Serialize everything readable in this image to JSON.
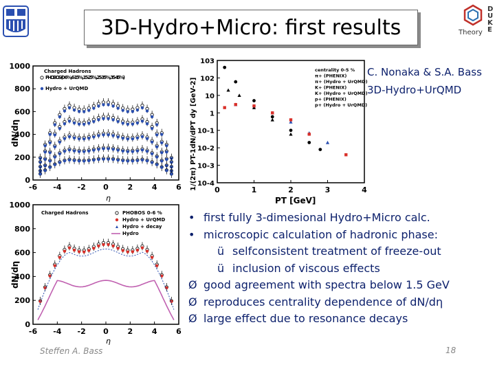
{
  "slide": {
    "title": "3D-Hydro+Micro: first results",
    "credit_line1": "C. Nonaka & S.A. Bass",
    "credit_line2": "3D-Hydro+UrQMD",
    "bullets": [
      {
        "marker": "•",
        "level": 1,
        "text": "first fully 3-dimesional Hydro+Micro calc."
      },
      {
        "marker": "•",
        "level": 1,
        "text": "microscopic calculation of hadronic phase:"
      },
      {
        "marker": "ü",
        "level": 2,
        "text": "selfconsistent treatment of freeze-out"
      },
      {
        "marker": "ü",
        "level": 2,
        "text": "inclusion of viscous effects"
      },
      {
        "marker": "Ø",
        "level": 1,
        "text": "good agreement with spectra below 1.5 GeV"
      },
      {
        "marker": "Ø",
        "level": 1,
        "text": "reproduces centrality dependence of dN/dη"
      },
      {
        "marker": "Ø",
        "level": 1,
        "text": "large effect due to resonance decays"
      }
    ],
    "footer_author": "Steffen A. Bass",
    "page_number": "18",
    "duke_logo_text": [
      "D",
      "U",
      "K",
      "E"
    ],
    "duke_logo_caption": "Theory",
    "colors": {
      "title_shadow": "#8a8a8a",
      "text_blue": "#0b1f6b",
      "data_blue": "#2a4fb0",
      "data_red": "#d9302a",
      "hydro_pink": "#c060b0"
    }
  },
  "chart_data": [
    {
      "type": "scatter",
      "title": "",
      "xlabel": "η",
      "ylabel": "dN/dη",
      "xlim": [
        -6,
        6
      ],
      "ylim": [
        0,
        1000
      ],
      "xticks": [
        "-6",
        "-4",
        "-2",
        "0",
        "2",
        "4",
        "6"
      ],
      "yticks": [
        "0",
        "200",
        "400",
        "600",
        "800",
        "1000"
      ],
      "legend": [
        "Charged Hadrons",
        "PHOBOS (0-6 %, 6-15 %, 15-25 %, 25-35 %, 35-45 %)",
        "Hydro + UrQMD"
      ],
      "legend_position": "top-left",
      "series": [
        {
          "name": "0-6 %",
          "plateau": 650
        },
        {
          "name": "6-15 %",
          "plateau": 530
        },
        {
          "name": "15-25 %",
          "plateau": 390
        },
        {
          "name": "25-35 %",
          "plateau": 270
        },
        {
          "name": "35-45 %",
          "plateau": 180
        }
      ]
    },
    {
      "type": "scatter",
      "title": "",
      "xlabel": "PT [GeV]",
      "ylabel": "1/(2π) PT-1dN/dPT dy [GeV-2]",
      "xlim": [
        0,
        4
      ],
      "ylim": [
        0.0001,
        1000
      ],
      "log_y": true,
      "xticks": [
        "0",
        "1",
        "2",
        "3",
        "4"
      ],
      "yticks": [
        "10-4",
        "10-3",
        "10-2",
        "10-1",
        "1",
        "10",
        "102",
        "103"
      ],
      "legend": [
        "centrality 0-5 %",
        "π+ (PHENIX)",
        "π+ (Hydro + UrQMD)",
        "K+ (PHENIX)",
        "K+ (Hydro + UrQMD)",
        "p+ (PHENIX)",
        "p+ (Hydro + UrQMD)"
      ],
      "legend_position": "top-right",
      "series": [
        {
          "name": "π+ (PHENIX)",
          "x": [
            0.2,
            0.5,
            1.0,
            1.5,
            2.0,
            2.5,
            2.8
          ],
          "y": [
            400,
            60,
            5,
            0.6,
            0.1,
            0.02,
            0.008
          ]
        },
        {
          "name": "K+ (PHENIX)",
          "x": [
            0.3,
            0.6,
            1.0,
            1.5,
            2.0
          ],
          "y": [
            20,
            10,
            2,
            0.4,
            0.06
          ]
        },
        {
          "name": "p+ (PHENIX)",
          "x": [
            0.5,
            1.0,
            1.5,
            2.0,
            2.5,
            3.0
          ],
          "y": [
            3,
            2.5,
            1,
            0.3,
            0.07,
            0.02
          ]
        },
        {
          "name": "p+ (Hydro + UrQMD)",
          "x": [
            0.2,
            0.5,
            1.0,
            1.5,
            2.0,
            2.5,
            3.5
          ],
          "y": [
            2,
            3,
            2.5,
            1,
            0.4,
            0.06,
            0.004
          ]
        }
      ]
    },
    {
      "type": "scatter",
      "title": "",
      "xlabel": "η",
      "ylabel": "dN/dη",
      "xlim": [
        -6,
        6
      ],
      "ylim": [
        0,
        1000
      ],
      "xticks": [
        "-6",
        "-4",
        "-2",
        "0",
        "2",
        "4",
        "6"
      ],
      "yticks": [
        "0",
        "200",
        "400",
        "600",
        "800",
        "1000"
      ],
      "legend": [
        "Charged Hadrons",
        "PHOBOS 0-6 %",
        "Hydro + UrQMD",
        "Hydro + decay",
        "Hydro"
      ],
      "legend_position": "top",
      "series": [
        {
          "name": "PHOBOS 0-6 %",
          "plateau": 650
        },
        {
          "name": "Hydro + UrQMD",
          "plateau": 650
        },
        {
          "name": "Hydro + decay",
          "plateau": 600
        },
        {
          "name": "Hydro",
          "plateau": 340
        }
      ]
    }
  ]
}
